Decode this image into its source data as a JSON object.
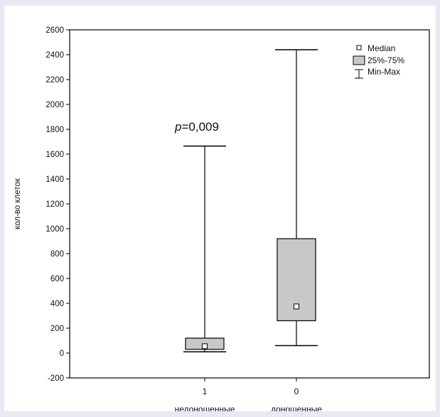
{
  "chart_data": {
    "type": "boxplot",
    "ylabel": "кол-во клеток",
    "ylim": [
      -200,
      2600
    ],
    "yticks": [
      -200,
      0,
      200,
      400,
      600,
      800,
      1000,
      1200,
      1400,
      1600,
      1800,
      2000,
      2200,
      2400,
      2600
    ],
    "categories": [
      {
        "code": "1",
        "name": "недоношенные",
        "min": 10,
        "q1": 30,
        "median": 55,
        "q3": 120,
        "max": 1665
      },
      {
        "code": "0",
        "name": "доношенные",
        "min": 60,
        "q1": 260,
        "median": 375,
        "q3": 920,
        "max": 2440
      }
    ],
    "legend": {
      "position": "top-right",
      "items": [
        "Median",
        "25%-75%",
        "Min-Max"
      ]
    },
    "annotation": {
      "italic": "p",
      "rest": "=0,009"
    },
    "colors": {
      "box_fill": "#c8c8c8",
      "stroke": "#000000",
      "background": "#e9e9f4"
    }
  }
}
